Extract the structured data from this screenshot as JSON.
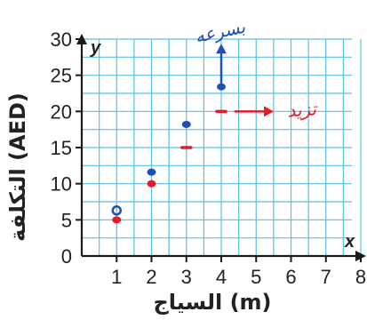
{
  "chart_data": {
    "type": "scatter",
    "xlabel": "السياج (m)",
    "ylabel": "التكلفة (AED)",
    "x_axis_letter": "x",
    "y_axis_letter": "y",
    "xlim": [
      0,
      8
    ],
    "ylim": [
      0,
      30
    ],
    "x_ticks": [
      1,
      2,
      3,
      4,
      5,
      6,
      7,
      8
    ],
    "y_ticks": [
      0,
      5,
      10,
      15,
      20,
      25,
      30
    ],
    "grid": true,
    "series": [
      {
        "color": "#1f4fb4",
        "points": [
          [
            1,
            6.3
          ],
          [
            2,
            11.6
          ],
          [
            3,
            18.2
          ],
          [
            4,
            23.4
          ]
        ],
        "marker_styles": [
          "open",
          "filled",
          "filled",
          "filled"
        ]
      },
      {
        "color": "#e11d2a",
        "points": [
          [
            1,
            5.0
          ],
          [
            2,
            10.0
          ],
          [
            3,
            15.0
          ],
          [
            4,
            20.0
          ]
        ],
        "marker_styles": [
          "filled",
          "filled",
          "dash",
          "dash"
        ]
      }
    ],
    "annotations": [
      {
        "text": "بسرعه",
        "color": "#1f4fb4",
        "type": "arrow-up",
        "from": [
          4,
          24
        ],
        "to": [
          4,
          28.5
        ]
      },
      {
        "text": "تزيد",
        "color": "#e11d2a",
        "type": "arrow-right",
        "from": [
          4.4,
          20
        ],
        "to": [
          5.3,
          20
        ]
      }
    ],
    "colors": {
      "grid": "#59c1e6",
      "axis": "#1a1a1a",
      "text": "#222222"
    }
  }
}
